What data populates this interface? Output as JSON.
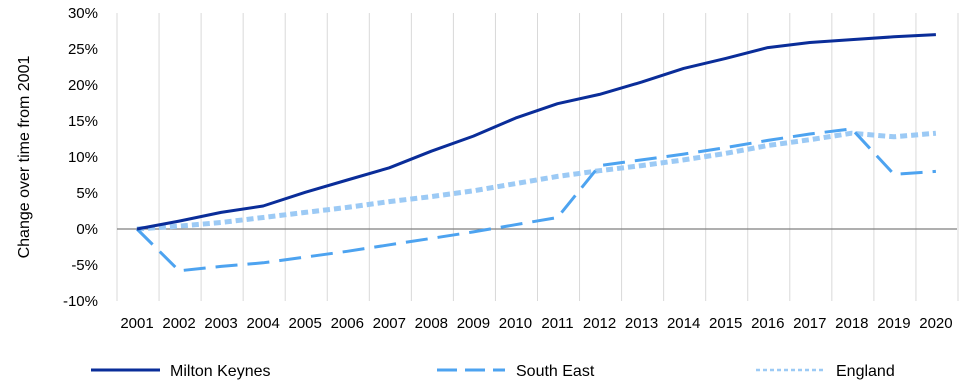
{
  "chart_data": {
    "type": "line",
    "title": "",
    "xlabel": "",
    "ylabel": "Change over  time from 2001",
    "x": [
      "2001",
      "2002",
      "2003",
      "2004",
      "2005",
      "2006",
      "2007",
      "2008",
      "2009",
      "2010",
      "2011",
      "2012",
      "2013",
      "2014",
      "2015",
      "2016",
      "2017",
      "2018",
      "2019",
      "2020"
    ],
    "ylim": [
      -10,
      30
    ],
    "yticks": [
      "-10%",
      "-5%",
      "0%",
      "5%",
      "10%",
      "15%",
      "20%",
      "25%",
      "30%"
    ],
    "ytick_values": [
      -10,
      -5,
      0,
      5,
      10,
      15,
      20,
      25,
      30
    ],
    "grid": "vertical",
    "legend": "bottom",
    "series": [
      {
        "name": "Milton Keynes",
        "color": "#0a2d99",
        "style": "solid",
        "values": [
          0,
          1.1,
          2.3,
          3.2,
          5.1,
          6.8,
          8.5,
          10.8,
          12.9,
          15.4,
          17.4,
          18.7,
          20.4,
          22.3,
          23.7,
          25.2,
          25.9,
          26.3,
          26.7,
          27.0
        ]
      },
      {
        "name": "South East",
        "color": "#4da3f0",
        "style": "dashed",
        "values": [
          0,
          -5.8,
          -5.2,
          -4.7,
          -3.9,
          -3.1,
          -2.2,
          -1.3,
          -0.4,
          0.6,
          1.6,
          8.8,
          9.6,
          10.4,
          11.3,
          12.3,
          13.2,
          13.9,
          7.6,
          8.0
        ]
      },
      {
        "name": "England",
        "color": "#9ccaf5",
        "style": "dotted",
        "values": [
          0,
          0.4,
          0.9,
          1.6,
          2.3,
          3.0,
          3.8,
          4.5,
          5.3,
          6.3,
          7.3,
          8.1,
          8.8,
          9.6,
          10.5,
          11.6,
          12.4,
          13.3,
          12.8,
          13.3
        ]
      }
    ]
  }
}
